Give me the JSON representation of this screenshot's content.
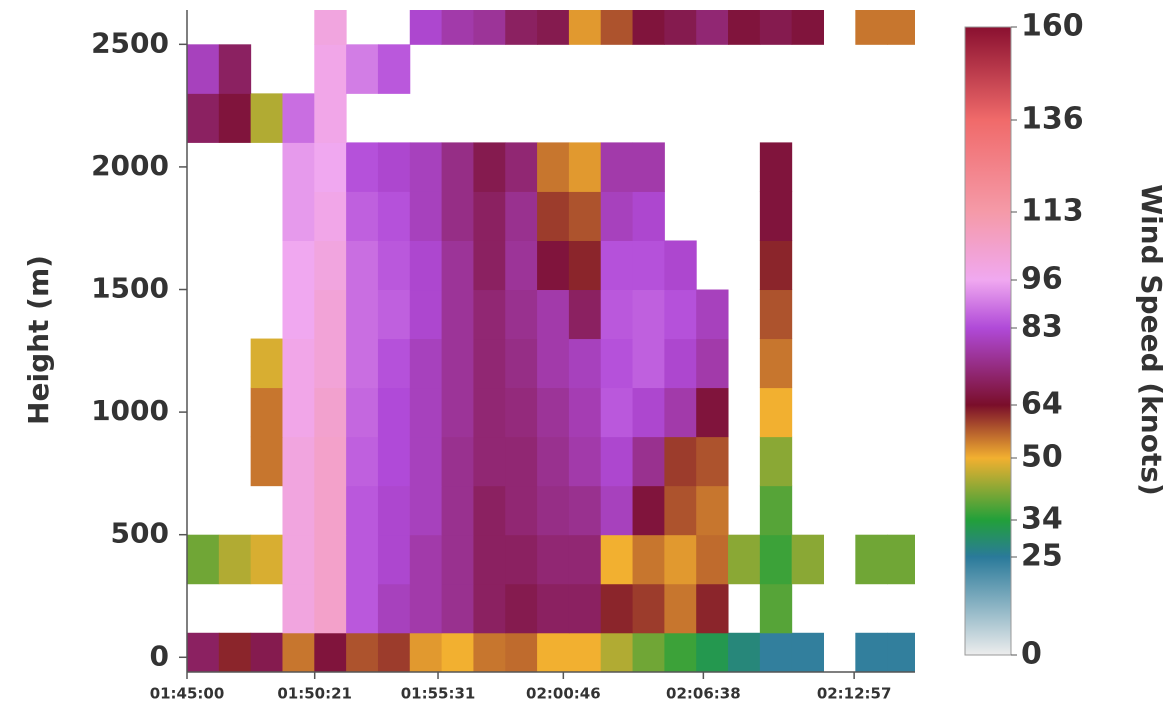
{
  "chart_data": {
    "type": "heatmap",
    "ylabel": "Height (m)",
    "x": [
      "01:45:00",
      "01:46:20",
      "01:47:40",
      "01:49:00",
      "01:50:20",
      "01:51:40",
      "01:53:00",
      "01:54:20",
      "01:55:40",
      "01:57:00",
      "01:58:20",
      "01:59:40",
      "02:01:00",
      "02:02:20",
      "02:03:40",
      "02:05:00",
      "02:06:20",
      "02:07:40",
      "02:09:00",
      "02:10:20",
      "02:11:40",
      "02:13:00",
      "02:14:20"
    ],
    "y": [
      0,
      200,
      400,
      600,
      800,
      1000,
      1200,
      1400,
      1600,
      1800,
      2000,
      2200,
      2400,
      2600
    ],
    "values": [
      [
        70,
        62,
        68,
        55,
        66,
        58,
        60,
        52,
        50,
        55,
        56,
        50,
        50,
        45,
        40,
        36,
        32,
        28,
        24,
        24,
        null,
        24,
        24
      ],
      [
        null,
        null,
        null,
        100,
        105,
        85,
        80,
        78,
        75,
        70,
        68,
        70,
        70,
        62,
        60,
        55,
        62,
        null,
        38,
        null,
        null,
        null,
        null
      ],
      [
        40,
        45,
        48,
        100,
        105,
        85,
        82,
        78,
        75,
        70,
        70,
        72,
        72,
        50,
        55,
        52,
        56,
        42,
        36,
        42,
        null,
        40,
        40
      ],
      [
        null,
        null,
        null,
        100,
        105,
        85,
        82,
        80,
        75,
        70,
        72,
        74,
        75,
        80,
        66,
        58,
        55,
        null,
        38,
        null,
        null,
        null,
        null
      ],
      [
        null,
        null,
        55,
        100,
        105,
        86,
        83,
        80,
        75,
        72,
        72,
        75,
        78,
        82,
        75,
        60,
        58,
        null,
        42,
        null,
        null,
        null,
        null
      ],
      [
        null,
        null,
        55,
        98,
        104,
        87,
        83,
        80,
        76,
        72,
        73,
        76,
        79,
        85,
        82,
        78,
        66,
        null,
        50,
        null,
        null,
        null,
        null
      ],
      [
        null,
        null,
        48,
        98,
        102,
        88,
        84,
        80,
        76,
        72,
        74,
        78,
        80,
        84,
        86,
        82,
        78,
        null,
        55,
        null,
        null,
        null,
        null
      ],
      [
        null,
        null,
        null,
        96,
        102,
        88,
        86,
        82,
        76,
        72,
        75,
        78,
        70,
        85,
        86,
        84,
        80,
        null,
        58,
        null,
        null,
        null,
        null
      ],
      [
        null,
        null,
        null,
        96,
        100,
        88,
        85,
        82,
        76,
        70,
        76,
        66,
        62,
        84,
        84,
        82,
        null,
        null,
        62,
        null,
        null,
        null,
        null
      ],
      [
        null,
        null,
        null,
        94,
        98,
        86,
        84,
        80,
        74,
        70,
        75,
        60,
        58,
        80,
        82,
        null,
        null,
        null,
        66,
        null,
        null,
        null,
        null
      ],
      [
        null,
        null,
        null,
        94,
        96,
        84,
        82,
        80,
        74,
        68,
        72,
        55,
        52,
        78,
        78,
        null,
        null,
        null,
        66,
        null,
        null,
        null,
        null
      ],
      [
        70,
        66,
        45,
        88,
        98,
        null,
        null,
        null,
        null,
        null,
        null,
        null,
        null,
        null,
        null,
        null,
        null,
        null,
        null,
        null,
        null,
        null,
        null
      ],
      [
        80,
        70,
        null,
        null,
        98,
        90,
        85,
        null,
        null,
        null,
        null,
        null,
        null,
        null,
        null,
        null,
        null,
        null,
        null,
        null,
        null,
        null,
        null
      ],
      [
        null,
        null,
        null,
        null,
        100,
        null,
        null,
        82,
        78,
        76,
        70,
        68,
        52,
        58,
        66,
        68,
        72,
        66,
        68,
        66,
        null,
        55,
        55
      ]
    ],
    "xlim": [
      "01:45:00",
      "02:15:30"
    ],
    "xticks": [
      "01:45:00",
      "01:50:21",
      "01:55:31",
      "02:00:46",
      "02:06:38",
      "02:12:57"
    ],
    "ylim": [
      -60,
      2640
    ],
    "yticks": [
      0,
      500,
      1000,
      1500,
      2000,
      2500
    ],
    "colorbar": {
      "label": "Wind Speed (knots)",
      "ticks": [
        0,
        25,
        34,
        50,
        64,
        83,
        96,
        113,
        136,
        160
      ],
      "colors": [
        "#ededed",
        "#2a7a9a",
        "#22a03a",
        "#f2b030",
        "#7a0e2a",
        "#b04ad8",
        "#f0a8f0",
        "#f59aa8",
        "#f06a6a",
        "#8a1030"
      ]
    }
  }
}
